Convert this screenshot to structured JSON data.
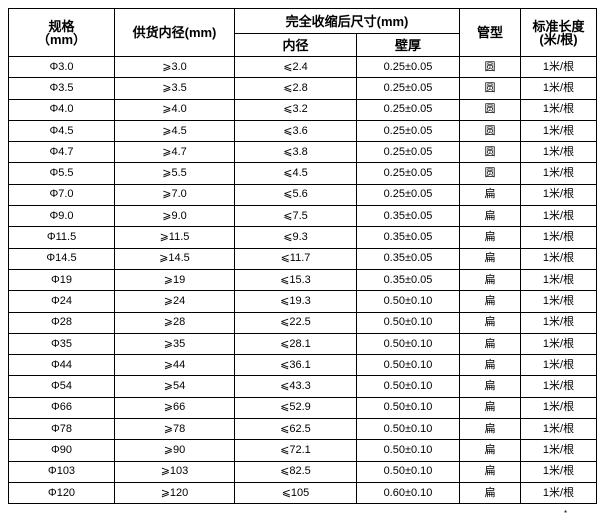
{
  "headers": {
    "spec": "规格",
    "spec_unit": "（mm）",
    "supply_id": "供货内径(mm)",
    "shrunk": "完全收缩后尺寸(mm)",
    "shrunk_id": "内径",
    "shrunk_wall": "壁厚",
    "tube_type": "管型",
    "std_length": "标准长度",
    "std_length_unit": "(米/根)"
  },
  "rows": [
    {
      "spec": "Φ3.0",
      "supply_id": "⩾3.0",
      "shrunk_id": "⩽2.4",
      "wall": "0.25±0.05",
      "type": "圆",
      "length": "1米/根"
    },
    {
      "spec": "Φ3.5",
      "supply_id": "⩾3.5",
      "shrunk_id": "⩽2.8",
      "wall": "0.25±0.05",
      "type": "圆",
      "length": "1米/根"
    },
    {
      "spec": "Φ4.0",
      "supply_id": "⩾4.0",
      "shrunk_id": "⩽3.2",
      "wall": "0.25±0.05",
      "type": "圆",
      "length": "1米/根"
    },
    {
      "spec": "Φ4.5",
      "supply_id": "⩾4.5",
      "shrunk_id": "⩽3.6",
      "wall": "0.25±0.05",
      "type": "圆",
      "length": "1米/根"
    },
    {
      "spec": "Φ4.7",
      "supply_id": "⩾4.7",
      "shrunk_id": "⩽3.8",
      "wall": "0.25±0.05",
      "type": "圆",
      "length": "1米/根"
    },
    {
      "spec": "Φ5.5",
      "supply_id": "⩾5.5",
      "shrunk_id": "⩽4.5",
      "wall": "0.25±0.05",
      "type": "圆",
      "length": "1米/根"
    },
    {
      "spec": "Φ7.0",
      "supply_id": "⩾7.0",
      "shrunk_id": "⩽5.6",
      "wall": "0.25±0.05",
      "type": "扁",
      "length": "1米/根"
    },
    {
      "spec": "Φ9.0",
      "supply_id": "⩾9.0",
      "shrunk_id": "⩽7.5",
      "wall": "0.35±0.05",
      "type": "扁",
      "length": "1米/根"
    },
    {
      "spec": "Φ11.5",
      "supply_id": "⩾11.5",
      "shrunk_id": "⩽9.3",
      "wall": "0.35±0.05",
      "type": "扁",
      "length": "1米/根"
    },
    {
      "spec": "Φ14.5",
      "supply_id": "⩾14.5",
      "shrunk_id": "⩽11.7",
      "wall": "0.35±0.05",
      "type": "扁",
      "length": "1米/根"
    },
    {
      "spec": "Φ19",
      "supply_id": "⩾19",
      "shrunk_id": "⩽15.3",
      "wall": "0.35±0.05",
      "type": "扁",
      "length": "1米/根"
    },
    {
      "spec": "Φ24",
      "supply_id": "⩾24",
      "shrunk_id": "⩽19.3",
      "wall": "0.50±0.10",
      "type": "扁",
      "length": "1米/根"
    },
    {
      "spec": "Φ28",
      "supply_id": "⩾28",
      "shrunk_id": "⩽22.5",
      "wall": "0.50±0.10",
      "type": "扁",
      "length": "1米/根"
    },
    {
      "spec": "Φ35",
      "supply_id": "⩾35",
      "shrunk_id": "⩽28.1",
      "wall": "0.50±0.10",
      "type": "扁",
      "length": "1米/根"
    },
    {
      "spec": "Φ44",
      "supply_id": "⩾44",
      "shrunk_id": "⩽36.1",
      "wall": "0.50±0.10",
      "type": "扁",
      "length": "1米/根"
    },
    {
      "spec": "Φ54",
      "supply_id": "⩾54",
      "shrunk_id": "⩽43.3",
      "wall": "0.50±0.10",
      "type": "扁",
      "length": "1米/根"
    },
    {
      "spec": "Φ66",
      "supply_id": "⩾66",
      "shrunk_id": "⩽52.9",
      "wall": "0.50±0.10",
      "type": "扁",
      "length": "1米/根"
    },
    {
      "spec": "Φ78",
      "supply_id": "⩾78",
      "shrunk_id": "⩽62.5",
      "wall": "0.50±0.10",
      "type": "扁",
      "length": "1米/根"
    },
    {
      "spec": "Φ90",
      "supply_id": "⩾90",
      "shrunk_id": "⩽72.1",
      "wall": "0.50±0.10",
      "type": "扁",
      "length": "1米/根"
    },
    {
      "spec": "Φ103",
      "supply_id": "⩾103",
      "shrunk_id": "⩽82.5",
      "wall": "0.50±0.10",
      "type": "扁",
      "length": "1米/根"
    },
    {
      "spec": "Φ120",
      "supply_id": "⩾120",
      "shrunk_id": "⩽105",
      "wall": "0.60±0.10",
      "type": "扁",
      "length": "1米/根"
    }
  ],
  "footnote_mark": "*"
}
